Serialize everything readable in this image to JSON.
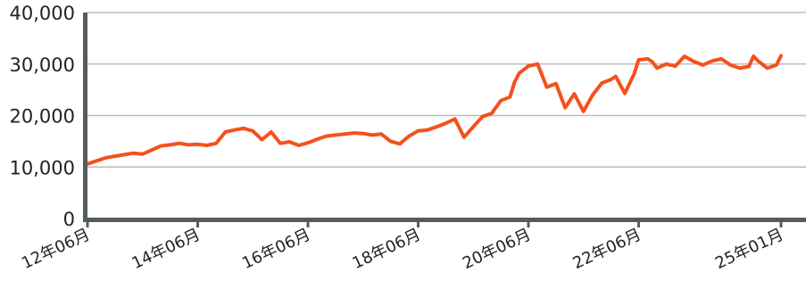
{
  "chart_data": {
    "type": "line",
    "title": "",
    "xlabel": "",
    "ylabel": "",
    "ylim": [
      0,
      40000
    ],
    "yticks": [
      0,
      10000,
      20000,
      30000,
      40000
    ],
    "ytick_labels": [
      "0",
      "10,000",
      "20,000",
      "30,000",
      "40,000"
    ],
    "xlim": [
      "2012-06",
      "2025-01"
    ],
    "xticks": [
      "2012-06",
      "2014-06",
      "2016-06",
      "2018-06",
      "2020-06",
      "2022-06",
      "2025-01"
    ],
    "xtick_labels": [
      "12年06月",
      "14年06月",
      "16年06月",
      "18年06月",
      "20年06月",
      "22年06月",
      "25年01月"
    ],
    "grid": true,
    "legend": "none",
    "line_color": "#f4511e",
    "series": [
      {
        "x": [
          "2012-06",
          "2012-08",
          "2012-10",
          "2012-12",
          "2013-02",
          "2013-04",
          "2013-06",
          "2013-08",
          "2013-10",
          "2013-12",
          "2014-02",
          "2014-04",
          "2014-06",
          "2014-08",
          "2014-10",
          "2014-12",
          "2015-02",
          "2015-04",
          "2015-06",
          "2015-08",
          "2015-10",
          "2015-12",
          "2016-02",
          "2016-04",
          "2016-06",
          "2016-08",
          "2016-10",
          "2016-12",
          "2017-02",
          "2017-04",
          "2017-06",
          "2017-08",
          "2017-10",
          "2017-12",
          "2018-02",
          "2018-04",
          "2018-06",
          "2018-08",
          "2018-10",
          "2018-12",
          "2019-02",
          "2019-04",
          "2019-06",
          "2019-08",
          "2019-10",
          "2019-12",
          "2020-02",
          "2020-03",
          "2020-04",
          "2020-06",
          "2020-08",
          "2020-10",
          "2020-12",
          "2021-02",
          "2021-04",
          "2021-06",
          "2021-08",
          "2021-10",
          "2021-12",
          "2022-01",
          "2022-03",
          "2022-05",
          "2022-06",
          "2022-08",
          "2022-09",
          "2022-10",
          "2022-12",
          "2023-02",
          "2023-04",
          "2023-06",
          "2023-08",
          "2023-10",
          "2023-12",
          "2024-02",
          "2024-04",
          "2024-06",
          "2024-07",
          "2024-08",
          "2024-10",
          "2024-12",
          "2025-01"
        ],
        "y": [
          10600,
          11200,
          11800,
          12100,
          12400,
          12700,
          12500,
          13300,
          14100,
          14300,
          14600,
          14300,
          14400,
          14200,
          14600,
          16800,
          17200,
          17500,
          17000,
          15300,
          16800,
          14600,
          14900,
          14200,
          14700,
          15400,
          16000,
          16200,
          16400,
          16600,
          16500,
          16200,
          16400,
          15000,
          14500,
          16000,
          17000,
          17200,
          17800,
          18500,
          19300,
          15800,
          17800,
          19800,
          20400,
          22900,
          23600,
          26500,
          28200,
          29600,
          30000,
          25500,
          26200,
          21500,
          24200,
          20800,
          24000,
          26300,
          27000,
          27600,
          24300,
          28000,
          30800,
          31000,
          30400,
          29200,
          30000,
          29600,
          31500,
          30500,
          29800,
          30600,
          31000,
          29800,
          29200,
          29500,
          31500,
          30600,
          29200,
          29800,
          31600
        ]
      }
    ]
  }
}
